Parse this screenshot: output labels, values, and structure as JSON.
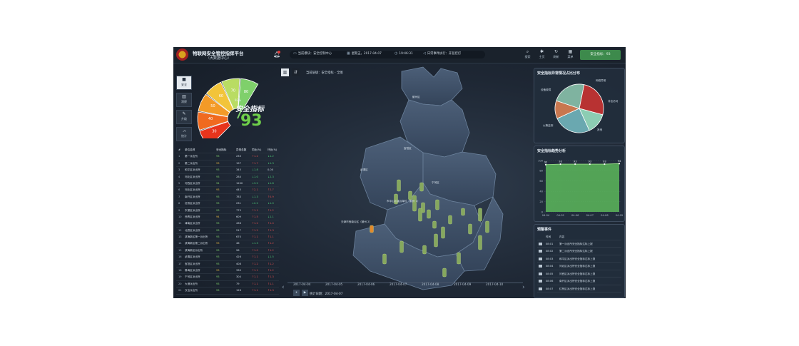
{
  "header": {
    "title": "物联网安全管控指挥平台",
    "subtitle": "（大数据中心）",
    "module_label": "当前模块：安全控制中心",
    "date_label": "星期五，2017-04-07",
    "time_label": "19:46:31",
    "event_label": "日常事件执行：开监控灯",
    "toolbar": [
      {
        "icon": "search-icon",
        "glyph": "⌕",
        "label": "搜索"
      },
      {
        "icon": "home-icon",
        "glyph": "✱",
        "label": "主页"
      },
      {
        "icon": "refresh-icon",
        "glyph": "↻",
        "label": "刷新"
      },
      {
        "icon": "grid-icon",
        "glyph": "▦",
        "label": "菜单"
      }
    ],
    "safety_button": "安全指标：93"
  },
  "sidenav": [
    {
      "icon": "lock-icon",
      "glyph": "■",
      "label": "安全",
      "active": true
    },
    {
      "icon": "bar-chart-icon",
      "glyph": "▥",
      "label": "洞察",
      "active": false
    },
    {
      "icon": "wrench-icon",
      "glyph": "✎",
      "label": "升级",
      "active": false
    },
    {
      "icon": "line-chart-icon",
      "glyph": "⩘",
      "label": "统计",
      "active": false
    }
  ],
  "gauge": {
    "title": "安全指标",
    "score": "93",
    "percent": "93%",
    "segment_labels": [
      "30",
      "40",
      "50",
      "60",
      "70",
      "80"
    ],
    "colors": [
      "#e8341c",
      "#f06a1f",
      "#f39a27",
      "#f2c43a",
      "#b9dc63",
      "#7fd06b"
    ]
  },
  "table": {
    "headers": [
      "#",
      "单位名称",
      "安全指标",
      "异常总数",
      "同比(%)",
      "环比(%)"
    ],
    "rows": [
      [
        "1",
        "第一派出所",
        "93",
        "233",
        "↑1.2",
        "↓1.2"
      ],
      [
        "2",
        "第二派出所",
        "93",
        "197",
        "↑1.7",
        "↓1.3"
      ],
      [
        "3",
        "和平区派出所",
        "93",
        "345",
        "↓1.8",
        "0.00"
      ],
      [
        "4",
        "河北区派出所",
        "93",
        "284",
        "↓1.0",
        "↓2.3"
      ],
      [
        "5",
        "河西区派出所",
        "94",
        "1200",
        "↓3.2",
        "↓1.8"
      ],
      [
        "6",
        "河北区派出所",
        "93",
        "445",
        "↑2.1",
        "↑2.7"
      ],
      [
        "7",
        "南开区派出所",
        "93",
        "783",
        "↓1.3",
        "↑0.9"
      ],
      [
        "8",
        "红桥区派出所",
        "93",
        "231",
        "↓2.2",
        "↓1.0"
      ],
      [
        "9",
        "东丽区派出所",
        "93",
        "775",
        "↑1.1",
        "↑1.2"
      ],
      [
        "10",
        "西青区派出所",
        "94",
        "609",
        "↑1.5",
        "↓1.1"
      ],
      [
        "11",
        "津南区派出所",
        "93",
        "436",
        "↑1.2",
        "↑1.4"
      ],
      [
        "12",
        "北辰区派出所",
        "93",
        "217",
        "↑1.2",
        "↑1.3"
      ],
      [
        "13",
        "滨海新区第一派出所",
        "93",
        "670",
        "↑1.1",
        "↑1.1"
      ],
      [
        "14",
        "滨海新区第二派出所",
        "93",
        "46",
        "↓1.3",
        "↑1.2"
      ],
      [
        "15",
        "滨海新区派出所",
        "93",
        "96",
        "↑1.0",
        "↑1.2"
      ],
      [
        "16",
        "武清区派出所",
        "93",
        "426",
        "↑1.1",
        "↓1.5"
      ],
      [
        "17",
        "宝坻区派出所",
        "93",
        "408",
        "↑1.2",
        "↑1.2"
      ],
      [
        "18",
        "静海区派出所",
        "93",
        "330",
        "↑1.1",
        "↑1.2"
      ],
      [
        "19",
        "宁河区派出所",
        "93",
        "304",
        "↑1.1",
        "↑1.3"
      ],
      [
        "20",
        "大港派出所",
        "93",
        "79",
        "↑1.1",
        "↑1.1"
      ],
      [
        "21",
        "汉沽派出所",
        "93",
        "126",
        "↑1.1",
        "↑1.3"
      ]
    ]
  },
  "map": {
    "crumb": "当前层级：安全指标 - 全图",
    "labels": [
      "市中心区重点单位（蓟州 1）",
      "天津市西南片区（蓟州 2）",
      "宝坻区",
      "武清区",
      "宁河区",
      "蓟州区"
    ]
  },
  "timeline": {
    "dates": [
      "2017-04-04",
      "2017-04-05",
      "2017-04-06",
      "2017-04-07",
      "2017-04-08",
      "2017-04-09",
      "2017-04-10"
    ],
    "stat_date": "统计日期：2017-04-07"
  },
  "pie_panel": {
    "title": "安全指标异常情况占比分布",
    "labels": [
      "设备故障",
      "网络异常",
      "非法访问",
      "火警监测",
      "其他"
    ]
  },
  "line_panel": {
    "title": "安全指标趋势分析"
  },
  "events": {
    "title": "预警事件",
    "headers": [
      "时间",
      "内容"
    ],
    "rows": [
      [
        "08:01",
        "第一派出所安全指标达标上报"
      ],
      [
        "08:02",
        "第二派出所安全指标达标上报"
      ],
      [
        "08:03",
        "和平区派出所安全指标达标上报"
      ],
      [
        "08:04",
        "河北区派出所安全指标达标上报"
      ],
      [
        "08:05",
        "河西区派出所安全指标达标上报"
      ],
      [
        "08:06",
        "南开区派出所安全指标达标上报"
      ],
      [
        "08:07",
        "红桥区派出所安全指标达标上报"
      ]
    ]
  },
  "chart_data": [
    {
      "type": "pie",
      "categories": [
        "设备故障",
        "网络异常",
        "非法访问",
        "火警监测",
        "其他"
      ],
      "values": [
        26,
        14,
        25,
        12,
        23
      ],
      "colors": [
        "#b83232",
        "#8ccdb3",
        "#6aa8b0",
        "#c8774f",
        "#7fb3a0"
      ],
      "legend": "labels-outside"
    },
    {
      "type": "area",
      "x": [
        "04-04",
        "04-05",
        "04-06",
        "04-07",
        "04-08",
        "04-09"
      ],
      "y": [
        92,
        93,
        93,
        93,
        93,
        94
      ],
      "data_labels": [
        "92",
        "93",
        "93",
        "93",
        "93",
        "94"
      ],
      "ylim": [
        0,
        100
      ],
      "yticks": [
        "100",
        "80",
        "60",
        "40",
        "20",
        "0"
      ],
      "grid": true,
      "color": "#5cb85c"
    }
  ]
}
